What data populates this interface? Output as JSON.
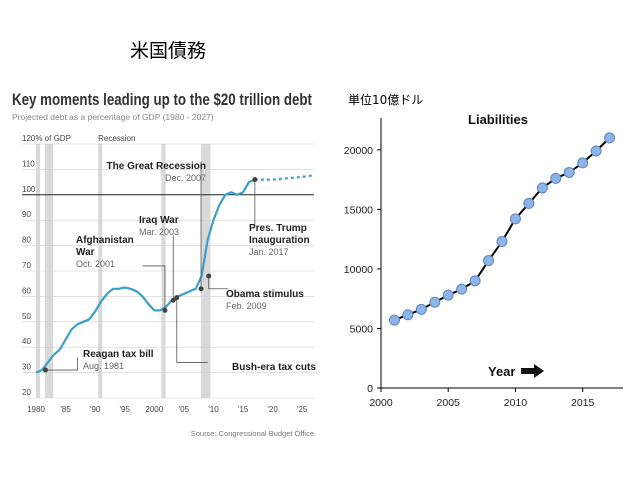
{
  "slide": {
    "title": "米国債務"
  },
  "chart_data": [
    {
      "type": "line",
      "title": "Key moments leading up to the $20 trillion debt",
      "subtitle": "Projected debt as a percentage of GDP (1980 - 2027)",
      "ylabel": "120% of GDP",
      "recession_label": "Recession",
      "source": "Source: Congressional Budget Office",
      "ylim": [
        20,
        120
      ],
      "xlim": [
        1980,
        2027
      ],
      "x_ticks": [
        {
          "v": 1980,
          "label": "1980"
        },
        {
          "v": 1985,
          "label": "'85"
        },
        {
          "v": 1990,
          "label": "'90"
        },
        {
          "v": 1995,
          "label": "'95"
        },
        {
          "v": 2000,
          "label": "2000"
        },
        {
          "v": 2005,
          "label": "'05"
        },
        {
          "v": 2010,
          "label": "'10"
        },
        {
          "v": 2015,
          "label": "'15"
        },
        {
          "v": 2020,
          "label": "'20"
        },
        {
          "v": 2025,
          "label": "'25"
        }
      ],
      "y_ticks": [
        20,
        30,
        40,
        50,
        60,
        70,
        80,
        90,
        100,
        110
      ],
      "recessions": [
        [
          1980,
          1980.6
        ],
        [
          1981.5,
          1982.9
        ],
        [
          1990.5,
          1991.2
        ],
        [
          2001.2,
          2001.9
        ],
        [
          2007.9,
          2009.5
        ]
      ],
      "series": [
        {
          "style": "solid",
          "x": [
            1980,
            1981,
            1982,
            1983,
            1984,
            1985,
            1986,
            1987,
            1988,
            1989,
            1990,
            1991,
            1992,
            1993,
            1994,
            1995,
            1996,
            1997,
            1998,
            1999,
            2000,
            2001,
            2002,
            2003,
            2004,
            2005,
            2006,
            2007,
            2008,
            2009,
            2010,
            2011,
            2012,
            2013,
            2014,
            2015,
            2016,
            2017
          ],
          "y": [
            30,
            31,
            34,
            37,
            39,
            43,
            47,
            49,
            50,
            51,
            54,
            58,
            61,
            63,
            63,
            63.5,
            63,
            62,
            60,
            57,
            54.5,
            54.5,
            56,
            58.5,
            60,
            61,
            62,
            63,
            68,
            82,
            90,
            96,
            100,
            101,
            100,
            101,
            105,
            106
          ]
        },
        {
          "style": "dashed",
          "x": [
            2017,
            2018,
            2019,
            2020,
            2021,
            2022,
            2023,
            2024,
            2025,
            2026,
            2027
          ],
          "y": [
            106,
            106,
            106,
            106,
            106.2,
            106.4,
            106.6,
            106.8,
            107.1,
            107.4,
            107.7
          ]
        }
      ],
      "annotations": [
        {
          "title": "The Great Recession",
          "date": "Dec. 2007"
        },
        {
          "title": "Iraq War",
          "date": "Mar. 2003"
        },
        {
          "title": "Afghanistan War",
          "date": "Oct. 2001"
        },
        {
          "title": "Pres. Trump Inauguration",
          "date": "Jan. 2017"
        },
        {
          "title": "Obama stimulus",
          "date": "Feb. 2009"
        },
        {
          "title": "Reagan tax bill",
          "date": "Aug. 1981"
        },
        {
          "title": "Bush-era tax cuts",
          "date": ""
        }
      ]
    },
    {
      "type": "line",
      "title": "Liabilities",
      "unit_label": "単位10億ドル",
      "xlabel": "Year",
      "xlim": [
        2000,
        2018
      ],
      "ylim": [
        0,
        22000
      ],
      "x_ticks": [
        2000,
        2005,
        2010,
        2015
      ],
      "y_ticks": [
        0,
        5000,
        10000,
        15000,
        20000
      ],
      "series": [
        {
          "x": [
            2001,
            2002,
            2003,
            2004,
            2005,
            2006,
            2007,
            2008,
            2009,
            2010,
            2011,
            2012,
            2013,
            2014,
            2015,
            2016,
            2017
          ],
          "y": [
            5700,
            6150,
            6600,
            7200,
            7800,
            8300,
            9000,
            10700,
            12300,
            14200,
            15500,
            16800,
            17600,
            18100,
            18900,
            19900,
            21000
          ]
        }
      ]
    }
  ]
}
